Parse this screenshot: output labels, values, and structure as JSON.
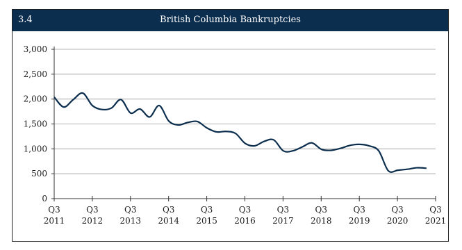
{
  "header": {
    "number": "3.4",
    "title": "British Columbia Bankruptcies"
  },
  "chart_data": {
    "type": "line",
    "title": "British Columbia Bankruptcies",
    "xlabel": "",
    "ylabel": "",
    "ylim": [
      0,
      3000
    ],
    "yticks": [
      "0",
      "500",
      "1,000",
      "1,500",
      "2,000",
      "2,500",
      "3,000"
    ],
    "xticks": [
      {
        "q": "Q3",
        "y": "2011"
      },
      {
        "q": "Q3",
        "y": "2012"
      },
      {
        "q": "Q3",
        "y": "2013"
      },
      {
        "q": "Q3",
        "y": "2014"
      },
      {
        "q": "Q3",
        "y": "2015"
      },
      {
        "q": "Q3",
        "y": "2016"
      },
      {
        "q": "Q3",
        "y": "2017"
      },
      {
        "q": "Q3",
        "y": "2018"
      },
      {
        "q": "Q3",
        "y": "2019"
      },
      {
        "q": "Q3",
        "y": "2020"
      },
      {
        "q": "Q3",
        "y": "2021"
      }
    ],
    "grid": true,
    "line_color": "#0c2e4e",
    "series": [
      {
        "values": [
          2040,
          1840,
          1990,
          2120,
          1870,
          1790,
          1820,
          1990,
          1720,
          1800,
          1640,
          1870,
          1560,
          1480,
          1530,
          1550,
          1420,
          1340,
          1350,
          1310,
          1110,
          1060,
          1150,
          1180,
          960,
          960,
          1040,
          1120,
          990,
          970,
          1010,
          1070,
          1090,
          1060,
          960,
          560,
          570,
          590,
          620,
          610
        ]
      }
    ]
  }
}
